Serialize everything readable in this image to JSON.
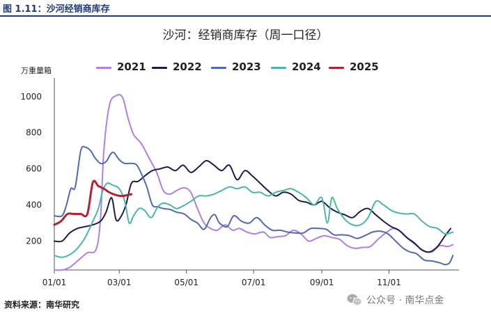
{
  "figure": {
    "caption": "图 1.11：沙河经销商库存",
    "source": "资料来源：南华研究",
    "watermark": "公众号 · 南华点金",
    "watermark_icon": "wechat-icon",
    "header_color": "#1f3a78"
  },
  "chart_data": {
    "type": "line",
    "title": "沙河：经销商库存（周一口径）",
    "ylabel": "万重量箱",
    "xlabel": "",
    "x_ticks": [
      "01/01",
      "03/01",
      "05/01",
      "07/01",
      "09/01",
      "11/01"
    ],
    "x_tick_days": [
      0,
      59,
      120,
      181,
      243,
      304
    ],
    "y_ticks": [
      200,
      400,
      600,
      800,
      1000
    ],
    "ylim": [
      40,
      1080
    ],
    "xlim_days": [
      0,
      365
    ],
    "grid": false,
    "legend_position": "top",
    "series": [
      {
        "name": "2021",
        "color": "#b07ee6",
        "points": [
          [
            0,
            40
          ],
          [
            7,
            40
          ],
          [
            14,
            55
          ],
          [
            22,
            95
          ],
          [
            30,
            135
          ],
          [
            38,
            155
          ],
          [
            42,
            330
          ],
          [
            45,
            700
          ],
          [
            50,
            950
          ],
          [
            56,
            1005
          ],
          [
            62,
            995
          ],
          [
            67,
            880
          ],
          [
            72,
            790
          ],
          [
            79,
            740
          ],
          [
            86,
            660
          ],
          [
            93,
            580
          ],
          [
            99,
            480
          ],
          [
            105,
            460
          ],
          [
            111,
            480
          ],
          [
            118,
            495
          ],
          [
            124,
            470
          ],
          [
            130,
            380
          ],
          [
            136,
            300
          ],
          [
            142,
            270
          ],
          [
            148,
            260
          ],
          [
            155,
            290
          ],
          [
            162,
            260
          ],
          [
            168,
            270
          ],
          [
            175,
            250
          ],
          [
            182,
            240
          ],
          [
            190,
            250
          ],
          [
            196,
            220
          ],
          [
            203,
            225
          ],
          [
            210,
            230
          ],
          [
            217,
            260
          ],
          [
            224,
            240
          ],
          [
            231,
            200
          ],
          [
            238,
            215
          ],
          [
            245,
            230
          ],
          [
            252,
            220
          ],
          [
            259,
            210
          ],
          [
            266,
            175
          ],
          [
            273,
            160
          ],
          [
            280,
            165
          ],
          [
            287,
            170
          ],
          [
            294,
            210
          ],
          [
            301,
            245
          ],
          [
            308,
            270
          ],
          [
            315,
            250
          ],
          [
            322,
            210
          ],
          [
            329,
            175
          ],
          [
            336,
            145
          ],
          [
            343,
            140
          ],
          [
            350,
            175
          ],
          [
            357,
            170
          ],
          [
            362,
            180
          ]
        ]
      },
      {
        "name": "2022",
        "color": "#1a1d4a",
        "points": [
          [
            0,
            200
          ],
          [
            7,
            200
          ],
          [
            14,
            245
          ],
          [
            21,
            270
          ],
          [
            28,
            280
          ],
          [
            35,
            290
          ],
          [
            42,
            310
          ],
          [
            47,
            360
          ],
          [
            52,
            440
          ],
          [
            56,
            320
          ],
          [
            60,
            330
          ],
          [
            65,
            400
          ],
          [
            70,
            520
          ],
          [
            76,
            530
          ],
          [
            82,
            560
          ],
          [
            89,
            590
          ],
          [
            96,
            600
          ],
          [
            103,
            610
          ],
          [
            110,
            590
          ],
          [
            117,
            620
          ],
          [
            124,
            580
          ],
          [
            131,
            610
          ],
          [
            138,
            645
          ],
          [
            145,
            620
          ],
          [
            152,
            590
          ],
          [
            159,
            620
          ],
          [
            166,
            540
          ],
          [
            173,
            590
          ],
          [
            180,
            560
          ],
          [
            187,
            520
          ],
          [
            194,
            480
          ],
          [
            201,
            450
          ],
          [
            208,
            470
          ],
          [
            215,
            460
          ],
          [
            222,
            425
          ],
          [
            229,
            415
          ],
          [
            236,
            400
          ],
          [
            243,
            420
          ],
          [
            250,
            385
          ],
          [
            257,
            360
          ],
          [
            264,
            345
          ],
          [
            271,
            330
          ],
          [
            278,
            365
          ],
          [
            285,
            380
          ],
          [
            292,
            345
          ],
          [
            299,
            310
          ],
          [
            306,
            280
          ],
          [
            313,
            260
          ],
          [
            320,
            220
          ],
          [
            327,
            190
          ],
          [
            334,
            150
          ],
          [
            341,
            140
          ],
          [
            348,
            170
          ],
          [
            355,
            230
          ],
          [
            360,
            270
          ]
        ]
      },
      {
        "name": "2023",
        "color": "#5068b8",
        "points": [
          [
            0,
            340
          ],
          [
            7,
            340
          ],
          [
            11,
            400
          ],
          [
            15,
            490
          ],
          [
            19,
            500
          ],
          [
            24,
            700
          ],
          [
            28,
            720
          ],
          [
            33,
            700
          ],
          [
            37,
            660
          ],
          [
            42,
            630
          ],
          [
            47,
            640
          ],
          [
            51,
            680
          ],
          [
            54,
            690
          ],
          [
            59,
            650
          ],
          [
            64,
            630
          ],
          [
            70,
            630
          ],
          [
            75,
            620
          ],
          [
            80,
            560
          ],
          [
            84,
            500
          ],
          [
            89,
            400
          ],
          [
            94,
            390
          ],
          [
            99,
            380
          ],
          [
            105,
            375
          ],
          [
            111,
            360
          ],
          [
            118,
            350
          ],
          [
            124,
            320
          ],
          [
            130,
            300
          ],
          [
            136,
            265
          ],
          [
            142,
            330
          ],
          [
            146,
            345
          ],
          [
            150,
            300
          ],
          [
            157,
            280
          ],
          [
            163,
            340
          ],
          [
            170,
            310
          ],
          [
            177,
            300
          ],
          [
            184,
            330
          ],
          [
            191,
            290
          ],
          [
            198,
            260
          ],
          [
            205,
            260
          ],
          [
            212,
            250
          ],
          [
            219,
            245
          ],
          [
            226,
            245
          ],
          [
            233,
            270
          ],
          [
            240,
            270
          ],
          [
            247,
            265
          ],
          [
            254,
            235
          ],
          [
            261,
            235
          ],
          [
            268,
            230
          ],
          [
            275,
            215
          ],
          [
            282,
            230
          ],
          [
            289,
            250
          ],
          [
            296,
            255
          ],
          [
            303,
            240
          ],
          [
            310,
            200
          ],
          [
            317,
            160
          ],
          [
            323,
            140
          ],
          [
            329,
            130
          ],
          [
            336,
            95
          ],
          [
            343,
            90
          ],
          [
            350,
            80
          ],
          [
            355,
            70
          ],
          [
            359,
            80
          ],
          [
            362,
            120
          ]
        ]
      },
      {
        "name": "2024",
        "color": "#4ab6a8",
        "points": [
          [
            0,
            120
          ],
          [
            7,
            110
          ],
          [
            14,
            125
          ],
          [
            21,
            160
          ],
          [
            28,
            220
          ],
          [
            35,
            310
          ],
          [
            40,
            380
          ],
          [
            44,
            480
          ],
          [
            48,
            520
          ],
          [
            53,
            510
          ],
          [
            59,
            490
          ],
          [
            64,
            420
          ],
          [
            68,
            300
          ],
          [
            72,
            340
          ],
          [
            77,
            380
          ],
          [
            82,
            370
          ],
          [
            88,
            330
          ],
          [
            94,
            390
          ],
          [
            99,
            410
          ],
          [
            105,
            400
          ],
          [
            111,
            380
          ],
          [
            117,
            395
          ],
          [
            124,
            420
          ],
          [
            131,
            450
          ],
          [
            138,
            450
          ],
          [
            145,
            460
          ],
          [
            152,
            480
          ],
          [
            159,
            500
          ],
          [
            166,
            490
          ],
          [
            173,
            500
          ],
          [
            180,
            470
          ],
          [
            187,
            470
          ],
          [
            194,
            450
          ],
          [
            201,
            470
          ],
          [
            208,
            480
          ],
          [
            215,
            490
          ],
          [
            222,
            470
          ],
          [
            229,
            440
          ],
          [
            236,
            400
          ],
          [
            243,
            440
          ],
          [
            248,
            300
          ],
          [
            252,
            440
          ],
          [
            257,
            380
          ],
          [
            264,
            320
          ],
          [
            271,
            290
          ],
          [
            278,
            290
          ],
          [
            285,
            330
          ],
          [
            292,
            420
          ],
          [
            299,
            400
          ],
          [
            306,
            370
          ],
          [
            313,
            355
          ],
          [
            320,
            350
          ],
          [
            327,
            350
          ],
          [
            334,
            310
          ],
          [
            341,
            280
          ],
          [
            348,
            270
          ],
          [
            355,
            240
          ],
          [
            362,
            250
          ]
        ]
      },
      {
        "name": "2025",
        "color": "#b22234",
        "points": [
          [
            0,
            290
          ],
          [
            6,
            310
          ],
          [
            12,
            350
          ],
          [
            18,
            350
          ],
          [
            24,
            350
          ],
          [
            30,
            350
          ],
          [
            35,
            525
          ],
          [
            40,
            505
          ],
          [
            45,
            490
          ],
          [
            50,
            470
          ],
          [
            56,
            455
          ],
          [
            62,
            450
          ],
          [
            70,
            460
          ]
        ]
      }
    ]
  }
}
